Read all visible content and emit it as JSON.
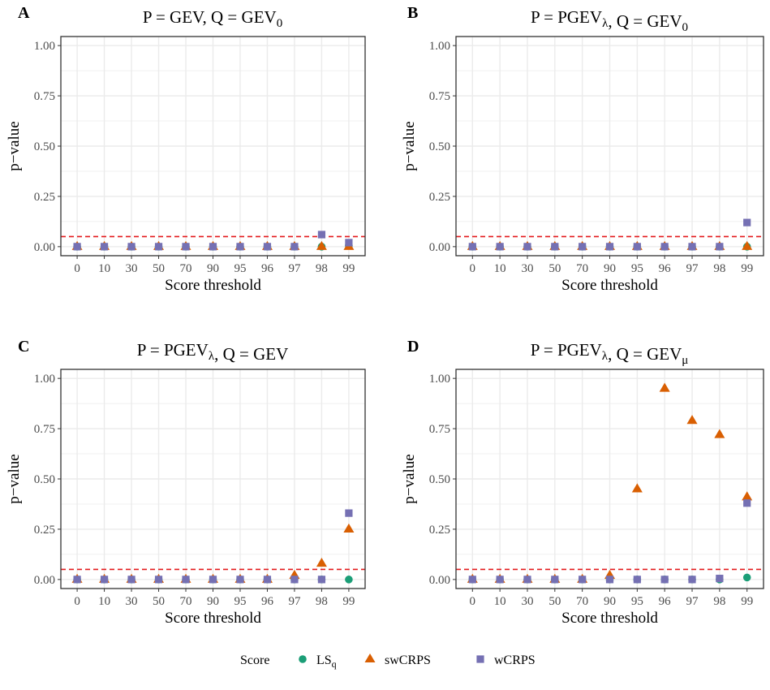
{
  "chart_data": [
    {
      "type": "scatter",
      "panel_label": "A",
      "title": {
        "base": "P = GEV, Q = GEV",
        "sub": "0"
      },
      "title_parts": {
        "p_base": "P = GEV",
        "p_sub": "",
        "q_base": "Q = GEV",
        "q_sub": "0"
      },
      "xlabel": "Score threshold",
      "ylabel": "p−value",
      "categories": [
        "0",
        "10",
        "30",
        "50",
        "70",
        "90",
        "95",
        "96",
        "97",
        "98",
        "99"
      ],
      "yticks": [
        "0.00",
        "0.25",
        "0.50",
        "0.75",
        "1.00"
      ],
      "ylim": [
        0,
        1
      ],
      "reference_line": 0.05,
      "series": [
        {
          "name": "LSq",
          "values": [
            0,
            0,
            0,
            0,
            0,
            0,
            0,
            0,
            0,
            0,
            0.005
          ]
        },
        {
          "name": "swCRPS",
          "values": [
            0,
            0,
            0,
            0,
            0,
            0,
            0,
            0,
            0,
            0,
            0
          ]
        },
        {
          "name": "wCRPS",
          "values": [
            0,
            0,
            0,
            0,
            0,
            0,
            0,
            0,
            0,
            0.06,
            0.02
          ]
        }
      ]
    },
    {
      "type": "scatter",
      "panel_label": "B",
      "title_parts": {
        "p_base": "P = PGEV",
        "p_sub": "λ",
        "q_base": "Q = GEV",
        "q_sub": "0"
      },
      "xlabel": "Score threshold",
      "ylabel": "p−value",
      "categories": [
        "0",
        "10",
        "30",
        "50",
        "70",
        "90",
        "95",
        "96",
        "97",
        "98",
        "99"
      ],
      "yticks": [
        "0.00",
        "0.25",
        "0.50",
        "0.75",
        "1.00"
      ],
      "ylim": [
        0,
        1
      ],
      "reference_line": 0.05,
      "series": [
        {
          "name": "LSq",
          "values": [
            0,
            0,
            0,
            0,
            0,
            0,
            0,
            0,
            0,
            0,
            0
          ]
        },
        {
          "name": "swCRPS",
          "values": [
            0,
            0,
            0,
            0,
            0,
            0,
            0,
            0,
            0,
            0,
            0
          ]
        },
        {
          "name": "wCRPS",
          "values": [
            0,
            0,
            0,
            0,
            0,
            0,
            0,
            0,
            0,
            0,
            0.12
          ]
        }
      ]
    },
    {
      "type": "scatter",
      "panel_label": "C",
      "title_parts": {
        "p_base": "P = PGEV",
        "p_sub": "λ",
        "q_base": "Q = GEV",
        "q_sub": ""
      },
      "xlabel": "Score threshold",
      "ylabel": "p−value",
      "categories": [
        "0",
        "10",
        "30",
        "50",
        "70",
        "90",
        "95",
        "96",
        "97",
        "98",
        "99"
      ],
      "yticks": [
        "0.00",
        "0.25",
        "0.50",
        "0.75",
        "1.00"
      ],
      "ylim": [
        0,
        1
      ],
      "reference_line": 0.05,
      "series": [
        {
          "name": "LSq",
          "values": [
            0,
            0,
            0,
            0,
            0,
            0,
            0,
            0,
            0,
            0,
            0
          ]
        },
        {
          "name": "swCRPS",
          "values": [
            0,
            0,
            0,
            0,
            0,
            0,
            0,
            0,
            0.02,
            0.08,
            0.25
          ]
        },
        {
          "name": "wCRPS",
          "values": [
            0,
            0,
            0,
            0,
            0,
            0,
            0,
            0,
            0,
            0,
            0.33
          ]
        }
      ]
    },
    {
      "type": "scatter",
      "panel_label": "D",
      "title_parts": {
        "p_base": "P = PGEV",
        "p_sub": "λ",
        "q_base": "Q = GEV",
        "q_sub": "μ"
      },
      "xlabel": "Score threshold",
      "ylabel": "p−value",
      "categories": [
        "0",
        "10",
        "30",
        "50",
        "70",
        "90",
        "95",
        "96",
        "97",
        "98",
        "99"
      ],
      "yticks": [
        "0.00",
        "0.25",
        "0.50",
        "0.75",
        "1.00"
      ],
      "ylim": [
        0,
        1
      ],
      "reference_line": 0.05,
      "series": [
        {
          "name": "LSq",
          "values": [
            0,
            0,
            0,
            0,
            0,
            0,
            0,
            0,
            0,
            0,
            0.01
          ]
        },
        {
          "name": "swCRPS",
          "values": [
            0,
            0,
            0,
            0,
            0,
            0.02,
            0.45,
            0.95,
            0.79,
            0.72,
            0.41
          ]
        },
        {
          "name": "wCRPS",
          "values": [
            0,
            0,
            0,
            0,
            0,
            0,
            0,
            0,
            0,
            0.005,
            0.38
          ]
        }
      ]
    }
  ],
  "legend": {
    "title": "Score",
    "position": "bottom",
    "items": [
      {
        "label_base": "LS",
        "label_sub": "q",
        "shape": "circle",
        "color": "#1b9e77"
      },
      {
        "label_base": "swCRPS",
        "label_sub": "",
        "shape": "triangle",
        "color": "#d95f02"
      },
      {
        "label_base": "wCRPS",
        "label_sub": "",
        "shape": "square",
        "color": "#7570b3"
      }
    ]
  },
  "colors": {
    "LSq": "#1b9e77",
    "swCRPS": "#d95f02",
    "wCRPS": "#7570b3",
    "reference_line": "#e41a1c",
    "grid": "#ebebeb"
  }
}
